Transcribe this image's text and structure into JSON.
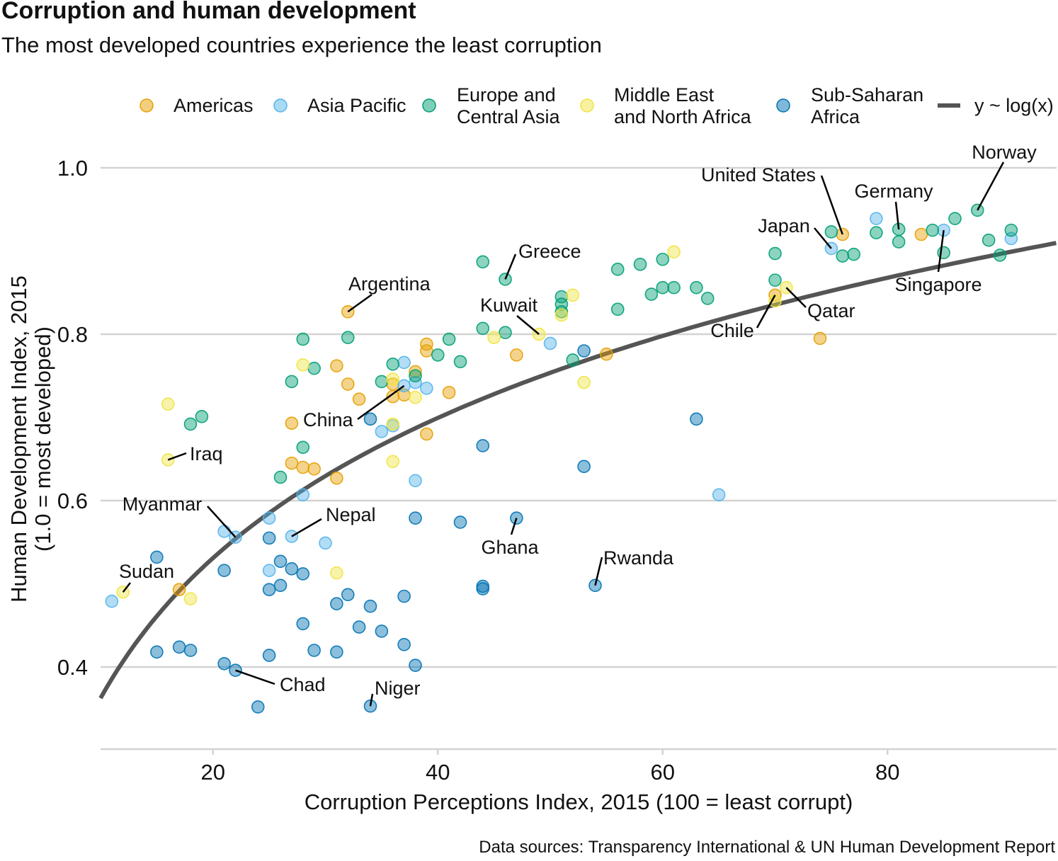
{
  "title": "Corruption and human development",
  "subtitle": "The most developed countries experience the least corruption",
  "caption": "Data sources: Transparency International & UN Human Development Report",
  "colors": {
    "Americas": "#E69F00",
    "Asia Pacific": "#56B4E9",
    "Europe and Central Asia": "#009E73",
    "Middle East and North Africa": "#F0E442",
    "Sub-Saharan Africa": "#0072B2",
    "fit_line": "#555555",
    "grid": "#d3d3d3"
  },
  "legend": {
    "items": [
      {
        "key": "Americas",
        "label_lines": [
          "Americas"
        ]
      },
      {
        "key": "Asia Pacific",
        "label_lines": [
          "Asia Pacific"
        ]
      },
      {
        "key": "Europe and Central Asia",
        "label_lines": [
          "Europe and",
          "Central Asia"
        ]
      },
      {
        "key": "Middle East and North Africa",
        "label_lines": [
          "Middle East",
          "and North Africa"
        ]
      },
      {
        "key": "Sub-Saharan Africa",
        "label_lines": [
          "Sub-Saharan",
          "Africa"
        ]
      }
    ],
    "line_label": "y ~ log(x)",
    "position": "top"
  },
  "chart_data": {
    "type": "scatter",
    "title": "Corruption and human development",
    "subtitle": "The most developed countries experience the least corruption",
    "xlabel": "Corruption Perceptions Index, 2015 (100 = least corrupt)",
    "ylabel_lines": [
      "Human Development Index, 2015",
      "(1.0 = most developed)"
    ],
    "xlim": [
      10,
      95
    ],
    "ylim": [
      0.3,
      1.03
    ],
    "x_ticks": [
      20,
      40,
      60,
      80
    ],
    "y_ticks": [
      0.4,
      0.6,
      0.8,
      1.0
    ],
    "y_tick_labels": [
      "0.4",
      "0.6",
      "0.8",
      "1.0"
    ],
    "grid": "horizontal",
    "fit": {
      "formula": "y ~ log(x)",
      "intercept": -0.197,
      "slope": 0.243
    },
    "series": [
      {
        "name": "Americas",
        "points": [
          [
            17,
            0.493
          ],
          [
            27,
            0.693
          ],
          [
            27,
            0.645
          ],
          [
            28,
            0.64
          ],
          [
            29,
            0.638
          ],
          [
            31,
            0.627
          ],
          [
            31,
            0.762
          ],
          [
            32,
            0.827
          ],
          [
            32,
            0.74
          ],
          [
            33,
            0.722
          ],
          [
            36,
            0.725
          ],
          [
            36,
            0.74
          ],
          [
            37,
            0.727
          ],
          [
            38,
            0.755
          ],
          [
            39,
            0.788
          ],
          [
            39,
            0.78
          ],
          [
            39,
            0.68
          ],
          [
            41,
            0.73
          ],
          [
            47,
            0.775
          ],
          [
            55,
            0.776
          ],
          [
            70,
            0.847
          ],
          [
            74,
            0.795
          ],
          [
            76,
            0.92
          ],
          [
            83,
            0.92
          ]
        ]
      },
      {
        "name": "Asia Pacific",
        "points": [
          [
            11,
            0.479
          ],
          [
            21,
            0.563
          ],
          [
            22,
            0.556
          ],
          [
            25,
            0.579
          ],
          [
            25,
            0.516
          ],
          [
            27,
            0.557
          ],
          [
            28,
            0.607
          ],
          [
            30,
            0.549
          ],
          [
            35,
            0.683
          ],
          [
            36,
            0.69
          ],
          [
            37,
            0.738
          ],
          [
            37,
            0.766
          ],
          [
            38,
            0.742
          ],
          [
            38,
            0.624
          ],
          [
            39,
            0.735
          ],
          [
            50,
            0.789
          ],
          [
            65,
            0.607
          ],
          [
            75,
            0.903
          ],
          [
            79,
            0.939
          ],
          [
            85,
            0.925
          ],
          [
            91,
            0.915
          ]
        ]
      },
      {
        "name": "Europe and Central Asia",
        "points": [
          [
            18,
            0.692
          ],
          [
            19,
            0.701
          ],
          [
            26,
            0.628
          ],
          [
            27,
            0.743
          ],
          [
            28,
            0.664
          ],
          [
            28,
            0.794
          ],
          [
            29,
            0.759
          ],
          [
            32,
            0.796
          ],
          [
            35,
            0.743
          ],
          [
            36,
            0.764
          ],
          [
            38,
            0.75
          ],
          [
            40,
            0.775
          ],
          [
            41,
            0.794
          ],
          [
            42,
            0.767
          ],
          [
            44,
            0.807
          ],
          [
            44,
            0.887
          ],
          [
            46,
            0.802
          ],
          [
            46,
            0.866
          ],
          [
            51,
            0.845
          ],
          [
            51,
            0.836
          ],
          [
            51,
            0.827
          ],
          [
            52,
            0.769
          ],
          [
            56,
            0.878
          ],
          [
            56,
            0.83
          ],
          [
            58,
            0.884
          ],
          [
            59,
            0.848
          ],
          [
            60,
            0.856
          ],
          [
            60,
            0.89
          ],
          [
            61,
            0.856
          ],
          [
            63,
            0.856
          ],
          [
            64,
            0.843
          ],
          [
            70,
            0.897
          ],
          [
            70,
            0.865
          ],
          [
            75,
            0.923
          ],
          [
            76,
            0.894
          ],
          [
            77,
            0.896
          ],
          [
            79,
            0.922
          ],
          [
            81,
            0.926
          ],
          [
            81,
            0.911
          ],
          [
            84,
            0.925
          ],
          [
            85,
            0.898
          ],
          [
            86,
            0.939
          ],
          [
            88,
            0.949
          ],
          [
            89,
            0.913
          ],
          [
            90,
            0.895
          ],
          [
            91,
            0.925
          ]
        ]
      },
      {
        "name": "Middle East and North Africa",
        "points": [
          [
            12,
            0.49
          ],
          [
            16,
            0.649
          ],
          [
            16,
            0.716
          ],
          [
            18,
            0.482
          ],
          [
            28,
            0.763
          ],
          [
            31,
            0.513
          ],
          [
            36,
            0.746
          ],
          [
            36,
            0.692
          ],
          [
            36,
            0.647
          ],
          [
            38,
            0.724
          ],
          [
            45,
            0.796
          ],
          [
            49,
            0.8
          ],
          [
            51,
            0.823
          ],
          [
            52,
            0.847
          ],
          [
            53,
            0.742
          ],
          [
            61,
            0.899
          ],
          [
            70,
            0.84
          ],
          [
            71,
            0.856
          ]
        ]
      },
      {
        "name": "Sub-Saharan Africa",
        "points": [
          [
            15,
            0.418
          ],
          [
            15,
            0.532
          ],
          [
            17,
            0.424
          ],
          [
            18,
            0.42
          ],
          [
            21,
            0.516
          ],
          [
            21,
            0.404
          ],
          [
            22,
            0.396
          ],
          [
            24,
            0.352
          ],
          [
            25,
            0.555
          ],
          [
            25,
            0.493
          ],
          [
            25,
            0.414
          ],
          [
            26,
            0.527
          ],
          [
            26,
            0.498
          ],
          [
            27,
            0.518
          ],
          [
            28,
            0.452
          ],
          [
            28,
            0.512
          ],
          [
            29,
            0.42
          ],
          [
            31,
            0.476
          ],
          [
            31,
            0.418
          ],
          [
            32,
            0.487
          ],
          [
            33,
            0.448
          ],
          [
            34,
            0.698
          ],
          [
            34,
            0.473
          ],
          [
            34,
            0.353
          ],
          [
            35,
            0.443
          ],
          [
            37,
            0.485
          ],
          [
            37,
            0.427
          ],
          [
            38,
            0.579
          ],
          [
            38,
            0.402
          ],
          [
            42,
            0.574
          ],
          [
            44,
            0.666
          ],
          [
            44,
            0.497
          ],
          [
            44,
            0.494
          ],
          [
            47,
            0.579
          ],
          [
            53,
            0.641
          ],
          [
            53,
            0.78
          ],
          [
            54,
            0.498
          ],
          [
            63,
            0.698
          ]
        ]
      }
    ],
    "annotations": [
      {
        "label": "Iraq",
        "x": 16,
        "y": 0.649
      },
      {
        "label": "Sudan",
        "x": 12,
        "y": 0.49
      },
      {
        "label": "Myanmar",
        "x": 22,
        "y": 0.556
      },
      {
        "label": "Chad",
        "x": 22,
        "y": 0.396
      },
      {
        "label": "Nepal",
        "x": 27,
        "y": 0.557
      },
      {
        "label": "Niger",
        "x": 34,
        "y": 0.353
      },
      {
        "label": "China",
        "x": 37,
        "y": 0.738
      },
      {
        "label": "Argentina",
        "x": 32,
        "y": 0.827
      },
      {
        "label": "Greece",
        "x": 46,
        "y": 0.866
      },
      {
        "label": "Kuwait",
        "x": 49,
        "y": 0.8
      },
      {
        "label": "Ghana",
        "x": 47,
        "y": 0.579
      },
      {
        "label": "Rwanda",
        "x": 54,
        "y": 0.498
      },
      {
        "label": "Chile",
        "x": 70,
        "y": 0.847
      },
      {
        "label": "Qatar",
        "x": 71,
        "y": 0.856
      },
      {
        "label": "Japan",
        "x": 75,
        "y": 0.903
      },
      {
        "label": "United States",
        "x": 76,
        "y": 0.92
      },
      {
        "label": "Germany",
        "x": 81,
        "y": 0.926
      },
      {
        "label": "Singapore",
        "x": 85,
        "y": 0.925
      },
      {
        "label": "Norway",
        "x": 88,
        "y": 0.949
      }
    ]
  }
}
